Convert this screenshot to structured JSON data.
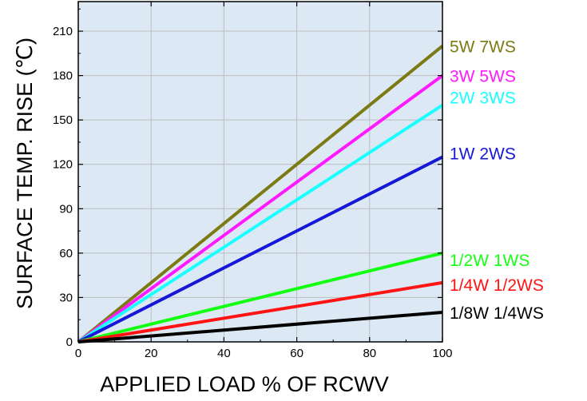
{
  "chart_data": {
    "type": "line",
    "title": "",
    "xlabel": "APPLIED LOAD % OF RCWV",
    "ylabel": "SURFACE TEMP. RISE (℃)",
    "xlim": [
      0,
      100
    ],
    "ylim": [
      0,
      230
    ],
    "x_ticks": [
      0,
      20,
      40,
      60,
      80,
      100
    ],
    "y_ticks": [
      0,
      30,
      60,
      90,
      120,
      150,
      180,
      210
    ],
    "grid": true,
    "legend": "inline-right",
    "plot_background": "#dce9f5",
    "grid_color": "#bdbdbd",
    "series": [
      {
        "name": "5W 7WS",
        "color": "#7c7a12",
        "points": [
          [
            0,
            0
          ],
          [
            100,
            200
          ]
        ]
      },
      {
        "name": "3W 5WS",
        "color": "#ff1aff",
        "points": [
          [
            0,
            0
          ],
          [
            100,
            180
          ]
        ]
      },
      {
        "name": "2W 3WS",
        "color": "#19ffff",
        "points": [
          [
            0,
            0
          ],
          [
            100,
            160
          ]
        ]
      },
      {
        "name": "1W 2WS",
        "color": "#1717d8",
        "points": [
          [
            0,
            0
          ],
          [
            100,
            125
          ]
        ]
      },
      {
        "name": "1/2W 1WS",
        "color": "#14ff14",
        "points": [
          [
            0,
            0
          ],
          [
            100,
            60
          ]
        ]
      },
      {
        "name": "1/4W 1/2WS",
        "color": "#ff1414",
        "points": [
          [
            0,
            0
          ],
          [
            100,
            40
          ]
        ]
      },
      {
        "name": "1/8W 1/4WS",
        "color": "#000000",
        "points": [
          [
            0,
            0
          ],
          [
            100,
            20
          ]
        ]
      }
    ]
  }
}
